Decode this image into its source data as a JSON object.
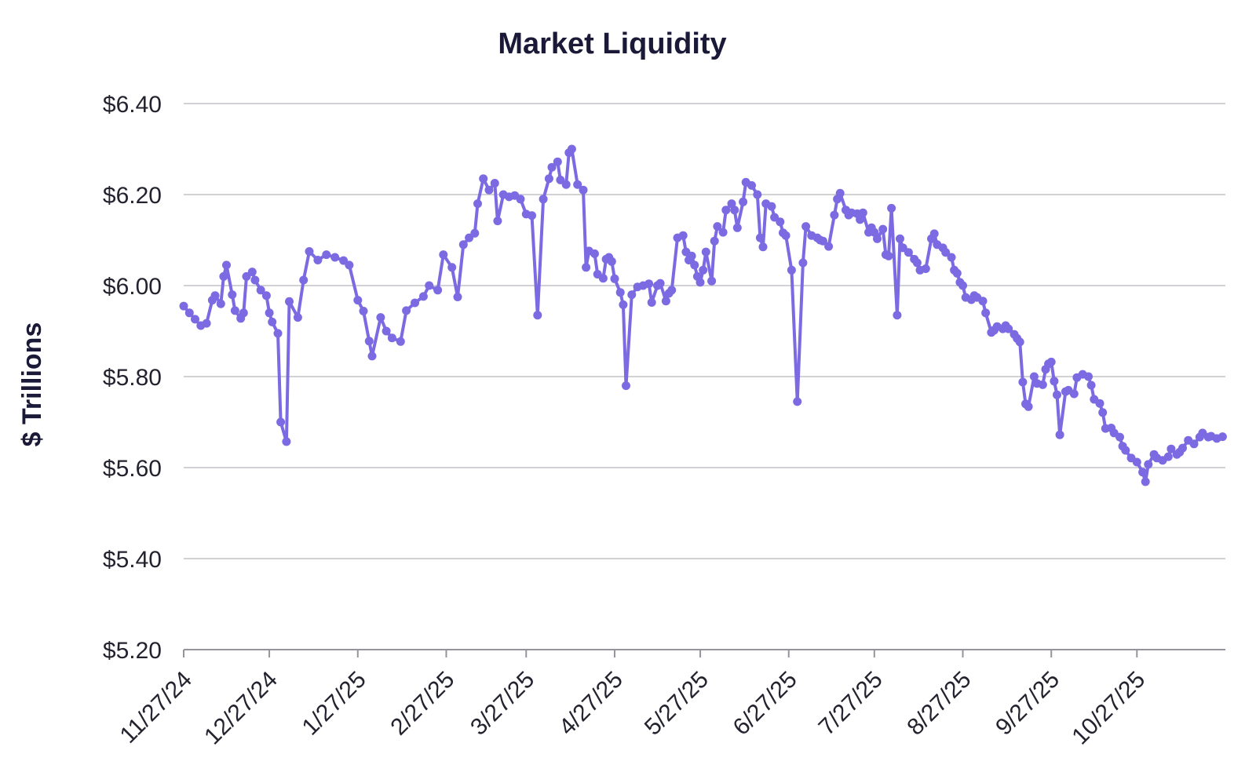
{
  "chart_data": {
    "type": "line",
    "title": "Market Liquidity",
    "ylabel": "$ Trillions",
    "xlabel": "",
    "ylim": [
      5.2,
      6.4
    ],
    "x_domain": [
      "11/27/24",
      "11/27/25"
    ],
    "grid": "horizontal",
    "legend": "none",
    "y_ticks": [
      {
        "value": 6.4,
        "label": "$6.40"
      },
      {
        "value": 6.2,
        "label": "$6.20"
      },
      {
        "value": 6.0,
        "label": "$6.00"
      },
      {
        "value": 5.8,
        "label": "$5.80"
      },
      {
        "value": 5.6,
        "label": "$5.60"
      },
      {
        "value": 5.4,
        "label": "$5.40"
      },
      {
        "value": 5.2,
        "label": "$5.20"
      }
    ],
    "x_ticks": [
      "11/27/24",
      "12/27/24",
      "1/27/25",
      "2/27/25",
      "3/27/25",
      "4/27/25",
      "5/27/25",
      "6/27/25",
      "7/27/25",
      "8/27/25",
      "9/27/25",
      "10/27/25"
    ],
    "series": [
      {
        "name": "Market Liquidity",
        "color": "#7b6ae2",
        "points": [
          [
            "11/27/24",
            5.955
          ],
          [
            "11/29/24",
            5.94
          ],
          [
            "12/1/24",
            5.926
          ],
          [
            "12/3/24",
            5.912
          ],
          [
            "12/5/24",
            5.917
          ],
          [
            "12/7/24",
            5.968
          ],
          [
            "12/8/24",
            5.978
          ],
          [
            "12/10/24",
            5.96
          ],
          [
            "12/11/24",
            6.02
          ],
          [
            "12/12/24",
            6.045
          ],
          [
            "12/14/24",
            5.98
          ],
          [
            "12/15/24",
            5.945
          ],
          [
            "12/17/24",
            5.928
          ],
          [
            "12/18/24",
            5.94
          ],
          [
            "12/19/24",
            6.02
          ],
          [
            "12/21/24",
            6.03
          ],
          [
            "12/22/24",
            6.012
          ],
          [
            "12/24/24",
            5.99
          ],
          [
            "12/26/24",
            5.978
          ],
          [
            "12/27/24",
            5.94
          ],
          [
            "12/28/24",
            5.92
          ],
          [
            "12/30/24",
            5.895
          ],
          [
            "12/31/24",
            5.7
          ],
          [
            "1/2/25",
            5.657
          ],
          [
            "1/3/25",
            5.965
          ],
          [
            "1/6/25",
            5.93
          ],
          [
            "1/8/25",
            6.012
          ],
          [
            "1/10/25",
            6.075
          ],
          [
            "1/13/25",
            6.056
          ],
          [
            "1/16/25",
            6.068
          ],
          [
            "1/19/25",
            6.062
          ],
          [
            "1/22/25",
            6.055
          ],
          [
            "1/24/25",
            6.045
          ],
          [
            "1/27/25",
            5.968
          ],
          [
            "1/29/25",
            5.944
          ],
          [
            "1/31/25",
            5.878
          ],
          [
            "2/1/25",
            5.845
          ],
          [
            "2/4/25",
            5.93
          ],
          [
            "2/6/25",
            5.9
          ],
          [
            "2/8/25",
            5.885
          ],
          [
            "2/11/25",
            5.877
          ],
          [
            "2/13/25",
            5.945
          ],
          [
            "2/16/25",
            5.962
          ],
          [
            "2/19/25",
            5.976
          ],
          [
            "2/21/25",
            6.0
          ],
          [
            "2/24/25",
            5.99
          ],
          [
            "2/26/25",
            6.068
          ],
          [
            "3/1/25",
            6.04
          ],
          [
            "3/3/25",
            5.975
          ],
          [
            "3/5/25",
            6.09
          ],
          [
            "3/7/25",
            6.105
          ],
          [
            "3/9/25",
            6.115
          ],
          [
            "3/10/25",
            6.18
          ],
          [
            "3/12/25",
            6.235
          ],
          [
            "3/14/25",
            6.21
          ],
          [
            "3/16/25",
            6.225
          ],
          [
            "3/17/25",
            6.142
          ],
          [
            "3/19/25",
            6.2
          ],
          [
            "3/21/25",
            6.195
          ],
          [
            "3/23/25",
            6.198
          ],
          [
            "3/25/25",
            6.19
          ],
          [
            "3/27/25",
            6.157
          ],
          [
            "3/29/25",
            6.154
          ],
          [
            "3/31/25",
            5.935
          ],
          [
            "4/2/25",
            6.19
          ],
          [
            "4/4/25",
            6.235
          ],
          [
            "4/5/25",
            6.26
          ],
          [
            "4/7/25",
            6.272
          ],
          [
            "4/8/25",
            6.232
          ],
          [
            "4/10/25",
            6.222
          ],
          [
            "4/11/25",
            6.292
          ],
          [
            "4/12/25",
            6.3
          ],
          [
            "4/14/25",
            6.222
          ],
          [
            "4/16/25",
            6.21
          ],
          [
            "4/17/25",
            6.04
          ],
          [
            "4/18/25",
            6.076
          ],
          [
            "4/20/25",
            6.07
          ],
          [
            "4/21/25",
            6.025
          ],
          [
            "4/23/25",
            6.016
          ],
          [
            "4/24/25",
            6.058
          ],
          [
            "4/25/25",
            6.062
          ],
          [
            "4/26/25",
            6.053
          ],
          [
            "4/27/25",
            6.015
          ],
          [
            "4/29/25",
            5.985
          ],
          [
            "4/30/25",
            5.958
          ],
          [
            "5/1/25",
            5.78
          ],
          [
            "5/3/25",
            5.98
          ],
          [
            "5/5/25",
            5.997
          ],
          [
            "5/7/25",
            6.0
          ],
          [
            "5/9/25",
            6.004
          ],
          [
            "5/10/25",
            5.963
          ],
          [
            "5/12/25",
            6.0
          ],
          [
            "5/13/25",
            6.005
          ],
          [
            "5/15/25",
            5.966
          ],
          [
            "5/16/25",
            5.983
          ],
          [
            "5/17/25",
            5.99
          ],
          [
            "5/19/25",
            6.105
          ],
          [
            "5/21/25",
            6.11
          ],
          [
            "5/22/25",
            6.074
          ],
          [
            "5/23/25",
            6.056
          ],
          [
            "5/24/25",
            6.065
          ],
          [
            "5/25/25",
            6.045
          ],
          [
            "5/26/25",
            6.02
          ],
          [
            "5/27/25",
            6.007
          ],
          [
            "5/28/25",
            6.034
          ],
          [
            "5/29/25",
            6.074
          ],
          [
            "5/31/25",
            6.01
          ],
          [
            "6/1/25",
            6.098
          ],
          [
            "6/2/25",
            6.13
          ],
          [
            "6/4/25",
            6.117
          ],
          [
            "6/5/25",
            6.166
          ],
          [
            "6/7/25",
            6.18
          ],
          [
            "6/8/25",
            6.166
          ],
          [
            "6/9/25",
            6.127
          ],
          [
            "6/11/25",
            6.184
          ],
          [
            "6/12/25",
            6.227
          ],
          [
            "6/14/25",
            6.22
          ],
          [
            "6/16/25",
            6.2
          ],
          [
            "6/17/25",
            6.105
          ],
          [
            "6/18/25",
            6.085
          ],
          [
            "6/19/25",
            6.18
          ],
          [
            "6/21/25",
            6.174
          ],
          [
            "6/22/25",
            6.15
          ],
          [
            "6/24/25",
            6.14
          ],
          [
            "6/25/25",
            6.116
          ],
          [
            "6/26/25",
            6.11
          ],
          [
            "6/28/25",
            6.034
          ],
          [
            "6/30/25",
            5.745
          ],
          [
            "7/2/25",
            6.05
          ],
          [
            "7/3/25",
            6.13
          ],
          [
            "7/5/25",
            6.11
          ],
          [
            "7/7/25",
            6.105
          ],
          [
            "7/8/25",
            6.1
          ],
          [
            "7/9/25",
            6.098
          ],
          [
            "7/11/25",
            6.086
          ],
          [
            "7/13/25",
            6.155
          ],
          [
            "7/14/25",
            6.19
          ],
          [
            "7/15/25",
            6.203
          ],
          [
            "7/17/25",
            6.166
          ],
          [
            "7/18/25",
            6.155
          ],
          [
            "7/19/25",
            6.16
          ],
          [
            "7/21/25",
            6.158
          ],
          [
            "7/22/25",
            6.145
          ],
          [
            "7/23/25",
            6.16
          ],
          [
            "7/25/25",
            6.117
          ],
          [
            "7/26/25",
            6.127
          ],
          [
            "7/27/25",
            6.117
          ],
          [
            "7/28/25",
            6.103
          ],
          [
            "7/30/25",
            6.124
          ],
          [
            "7/31/25",
            6.068
          ],
          [
            "8/1/25",
            6.065
          ],
          [
            "8/2/25",
            6.17
          ],
          [
            "8/4/25",
            5.935
          ],
          [
            "8/5/25",
            6.103
          ],
          [
            "8/6/25",
            6.083
          ],
          [
            "8/8/25",
            6.073
          ],
          [
            "8/10/25",
            6.058
          ],
          [
            "8/11/25",
            6.05
          ],
          [
            "8/12/25",
            6.034
          ],
          [
            "8/14/25",
            6.037
          ],
          [
            "8/16/25",
            6.103
          ],
          [
            "8/17/25",
            6.114
          ],
          [
            "8/18/25",
            6.09
          ],
          [
            "8/20/25",
            6.083
          ],
          [
            "8/21/25",
            6.073
          ],
          [
            "8/23/25",
            6.062
          ],
          [
            "8/24/25",
            6.034
          ],
          [
            "8/25/25",
            6.027
          ],
          [
            "8/26/25",
            6.007
          ],
          [
            "8/27/25",
            6.0
          ],
          [
            "8/28/25",
            5.974
          ],
          [
            "8/30/25",
            5.969
          ],
          [
            "8/31/25",
            5.978
          ],
          [
            "9/1/25",
            5.974
          ],
          [
            "9/3/25",
            5.966
          ],
          [
            "9/4/25",
            5.94
          ],
          [
            "9/6/25",
            5.897
          ],
          [
            "9/7/25",
            5.902
          ],
          [
            "9/8/25",
            5.91
          ],
          [
            "9/10/25",
            5.905
          ],
          [
            "9/11/25",
            5.912
          ],
          [
            "9/12/25",
            5.905
          ],
          [
            "9/14/25",
            5.893
          ],
          [
            "9/15/25",
            5.884
          ],
          [
            "9/16/25",
            5.876
          ],
          [
            "9/17/25",
            5.788
          ],
          [
            "9/18/25",
            5.74
          ],
          [
            "9/19/25",
            5.734
          ],
          [
            "9/21/25",
            5.8
          ],
          [
            "9/22/25",
            5.785
          ],
          [
            "9/24/25",
            5.782
          ],
          [
            "9/25/25",
            5.816
          ],
          [
            "9/26/25",
            5.828
          ],
          [
            "9/27/25",
            5.832
          ],
          [
            "9/28/25",
            5.79
          ],
          [
            "9/29/25",
            5.76
          ],
          [
            "9/30/25",
            5.672
          ],
          [
            "10/2/25",
            5.767
          ],
          [
            "10/3/25",
            5.77
          ],
          [
            "10/5/25",
            5.762
          ],
          [
            "10/6/25",
            5.798
          ],
          [
            "10/8/25",
            5.805
          ],
          [
            "10/10/25",
            5.8
          ],
          [
            "10/11/25",
            5.781
          ],
          [
            "10/12/25",
            5.75
          ],
          [
            "10/14/25",
            5.741
          ],
          [
            "10/15/25",
            5.721
          ],
          [
            "10/16/25",
            5.686
          ],
          [
            "10/18/25",
            5.687
          ],
          [
            "10/19/25",
            5.676
          ],
          [
            "10/21/25",
            5.667
          ],
          [
            "10/22/25",
            5.647
          ],
          [
            "10/23/25",
            5.638
          ],
          [
            "10/25/25",
            5.621
          ],
          [
            "10/27/25",
            5.612
          ],
          [
            "10/29/25",
            5.59
          ],
          [
            "10/30/25",
            5.569
          ],
          [
            "10/31/25",
            5.607
          ],
          [
            "11/2/25",
            5.629
          ],
          [
            "11/3/25",
            5.621
          ],
          [
            "11/5/25",
            5.616
          ],
          [
            "11/7/25",
            5.624
          ],
          [
            "11/8/25",
            5.641
          ],
          [
            "11/10/25",
            5.629
          ],
          [
            "11/11/25",
            5.634
          ],
          [
            "11/12/25",
            5.643
          ],
          [
            "11/14/25",
            5.66
          ],
          [
            "11/16/25",
            5.652
          ],
          [
            "11/18/25",
            5.667
          ],
          [
            "11/19/25",
            5.676
          ],
          [
            "11/21/25",
            5.667
          ],
          [
            "11/22/25",
            5.669
          ],
          [
            "11/24/25",
            5.664
          ],
          [
            "11/26/25",
            5.668
          ]
        ]
      }
    ],
    "colors": {
      "line": "#7b6ae2",
      "title_text": "#1a1a38",
      "axis_text": "#23232f",
      "grid": "#d2d2d6",
      "axis": "#94949c"
    }
  }
}
